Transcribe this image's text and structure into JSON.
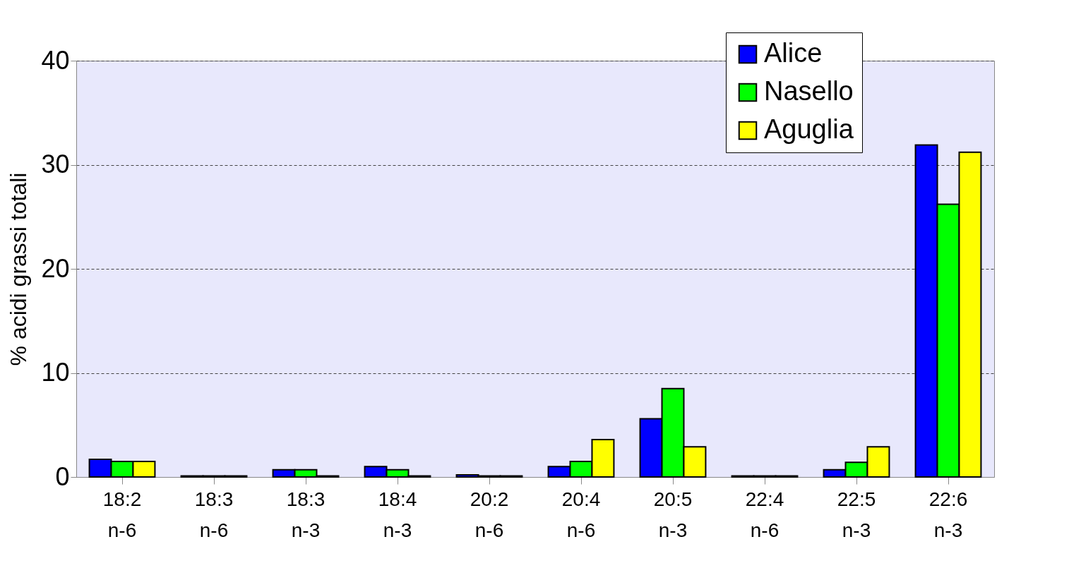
{
  "chart_data": {
    "type": "bar",
    "ylabel": "% acidi grassi totali",
    "categories": [
      "18:2 n-6",
      "18:3 n-6",
      "18:3 n-3",
      "18:4 n-3",
      "20:2 n-6",
      "20:4 n-6",
      "20:5 n-3",
      "22:4 n-6",
      "22:5 n-3",
      "22:6 n-3"
    ],
    "series": [
      {
        "name": "Alice",
        "color": "#0000ff",
        "values": [
          1.7,
          0.1,
          0.7,
          1.0,
          0.2,
          1.0,
          5.6,
          0.1,
          0.7,
          31.9
        ]
      },
      {
        "name": "Nasello",
        "color": "#00ff00",
        "values": [
          1.5,
          0.1,
          0.7,
          0.7,
          0.1,
          1.5,
          8.5,
          0.1,
          1.4,
          26.2
        ]
      },
      {
        "name": "Aguglia",
        "color": "#ffff00",
        "values": [
          1.5,
          0.1,
          0.1,
          0.1,
          0.1,
          3.6,
          2.9,
          0.1,
          2.9,
          31.2
        ]
      }
    ],
    "ylim": [
      0,
      40
    ],
    "yticks": [
      0,
      10,
      20,
      30,
      40
    ],
    "grid": "y",
    "legend": "top right"
  }
}
